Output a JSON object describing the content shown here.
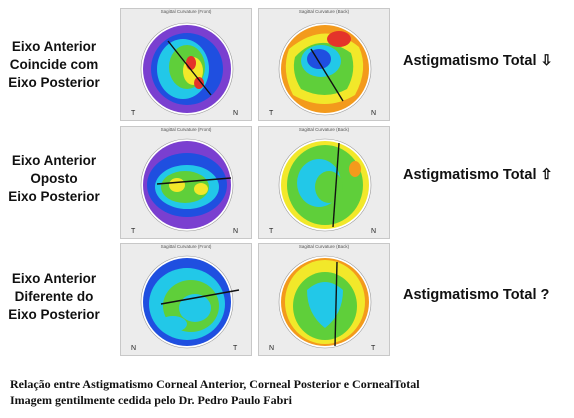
{
  "rows": [
    {
      "left_label": [
        "Eixo Anterior",
        "Coincide com",
        "Eixo Posterior"
      ],
      "right_label": "Astigmatismo Total ⇩",
      "anterior_title": "Sagittal Curvature (Front)",
      "posterior_title": "Sagittal Curvature (Back)",
      "anterior_corners": [
        "T",
        "N"
      ],
      "posterior_corners": [
        "T",
        "N"
      ]
    },
    {
      "left_label": [
        "Eixo Anterior",
        "Oposto",
        "Eixo Posterior"
      ],
      "right_label": "Astigmatismo Total ⇧",
      "anterior_title": "Sagittal Curvature (Front)",
      "posterior_title": "Sagittal Curvature (Back)",
      "anterior_corners": [
        "T",
        "N"
      ],
      "posterior_corners": [
        "T",
        "N"
      ]
    },
    {
      "left_label": [
        "Eixo Anterior",
        "Diferente do",
        "Eixo Posterior"
      ],
      "right_label": "Astigmatismo Total ?",
      "anterior_title": "Sagittal Curvature (Front)",
      "posterior_title": "Sagittal Curvature (Back)",
      "anterior_corners": [
        "N",
        "T"
      ],
      "posterior_corners": [
        "N",
        "T"
      ]
    }
  ],
  "caption": [
    "Relação entre Astigmatismo Corneal Anterior, Corneal Posterior e CornealTotal",
    "Imagem gentilmente cedida pelo Dr. Pedro Paulo Fabri"
  ],
  "map_colors": {
    "purple": "#7a3fd0",
    "blue": "#1f4fe0",
    "cyan": "#22c8e8",
    "green": "#5fcf3a",
    "yellow": "#f2e82a",
    "orange": "#f39a1c",
    "red": "#e4332a"
  }
}
